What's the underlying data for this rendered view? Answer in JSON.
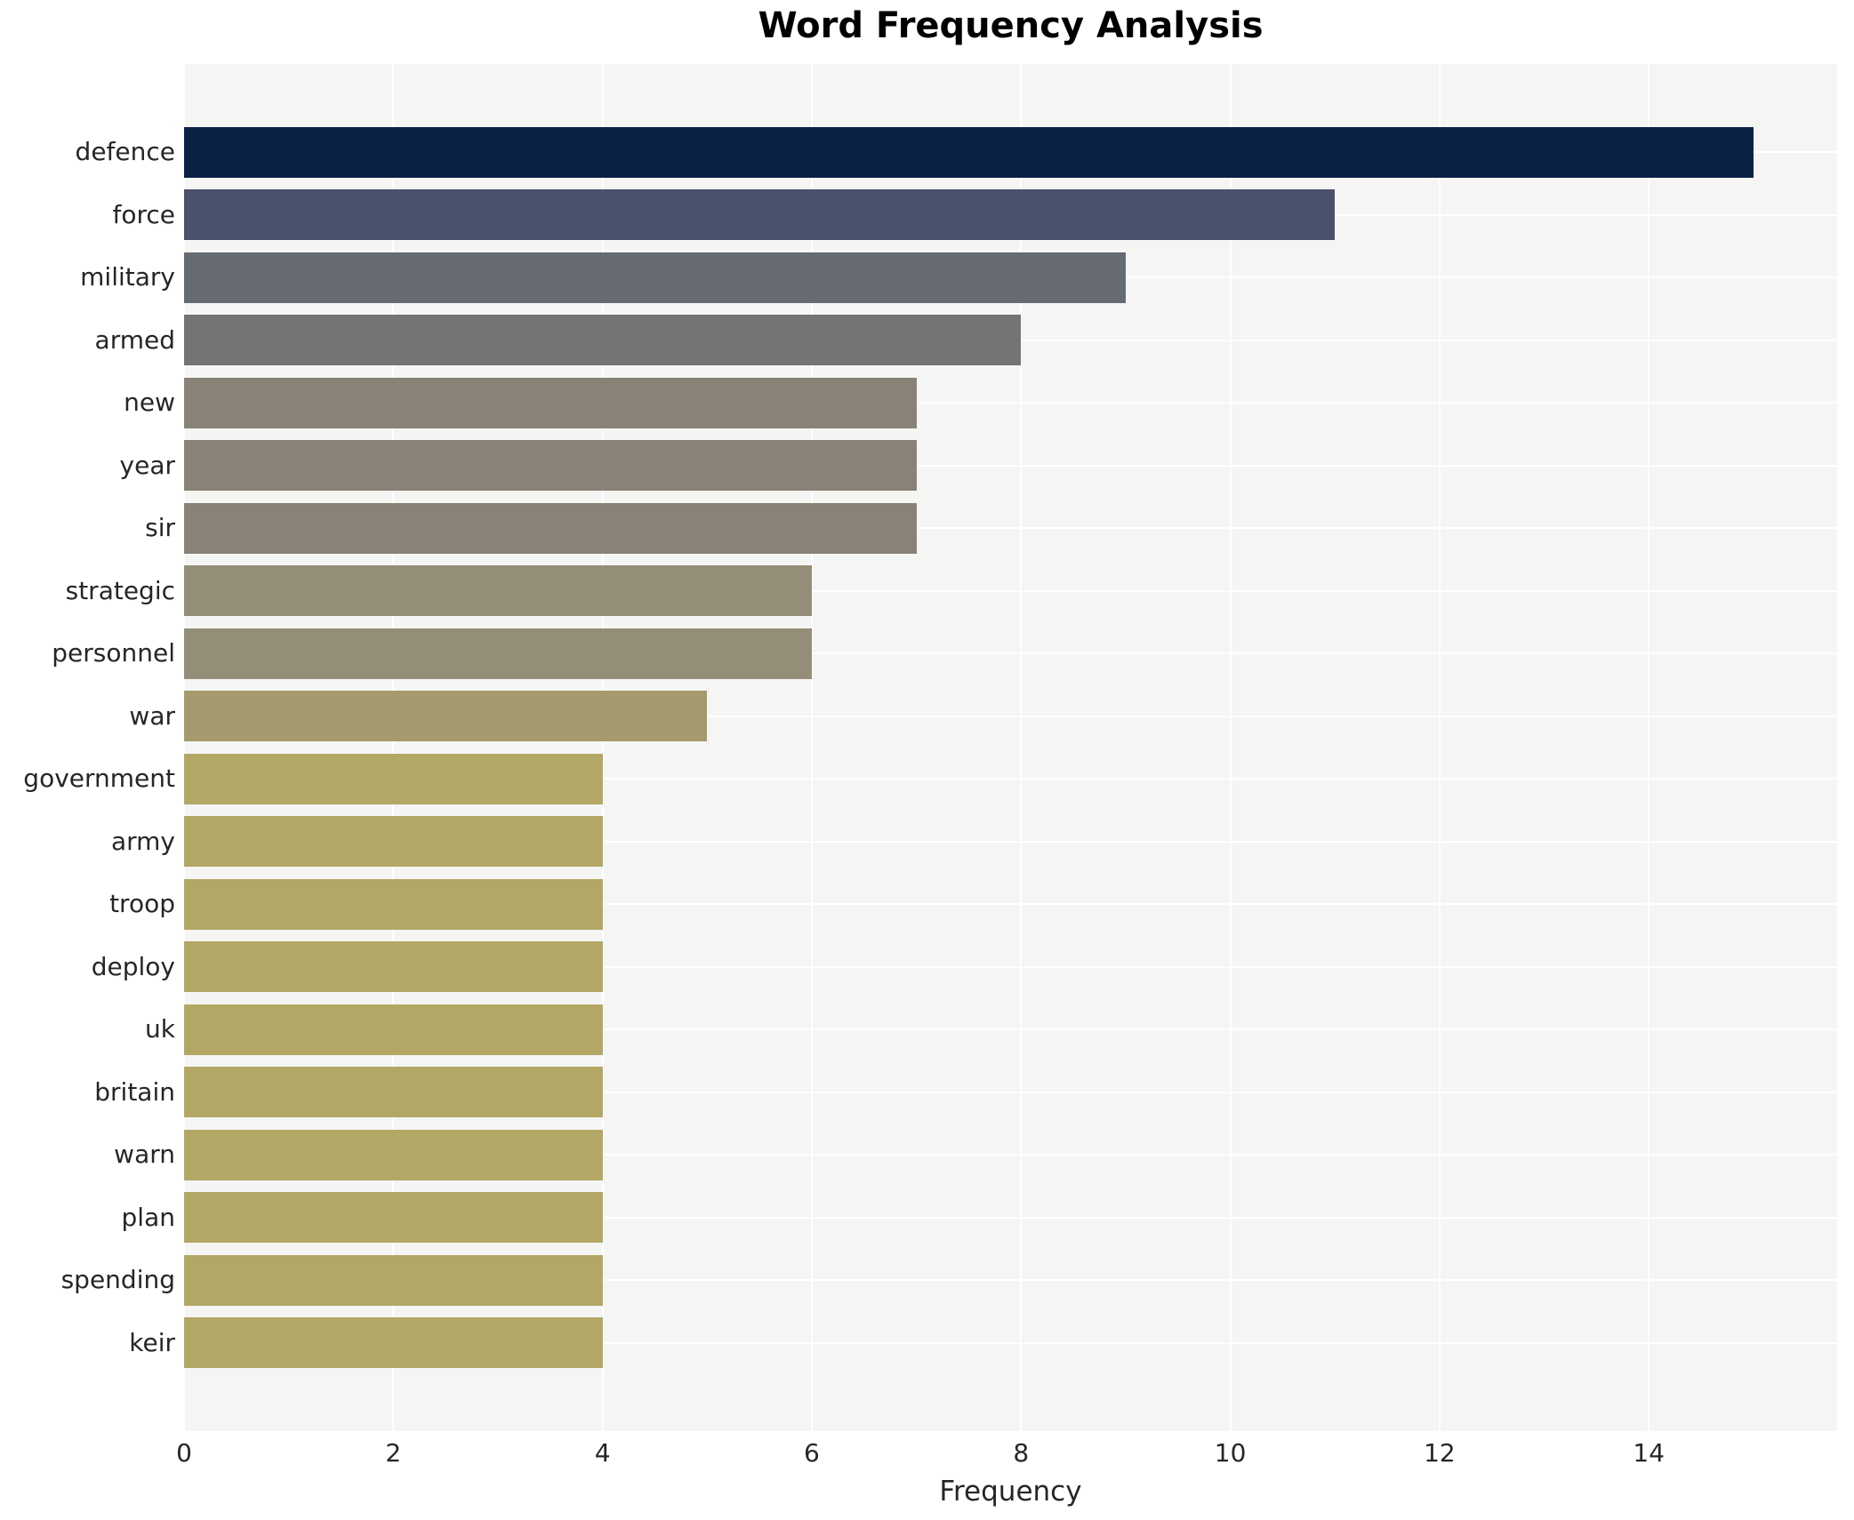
{
  "chart_data": {
    "type": "bar",
    "orientation": "horizontal",
    "title": "Word Frequency Analysis",
    "xlabel": "Frequency",
    "ylabel": "",
    "categories": [
      "defence",
      "force",
      "military",
      "armed",
      "new",
      "year",
      "sir",
      "strategic",
      "personnel",
      "war",
      "government",
      "army",
      "troop",
      "deploy",
      "uk",
      "britain",
      "warn",
      "plan",
      "spending",
      "keir"
    ],
    "values": [
      15,
      11,
      9,
      8,
      7,
      7,
      7,
      6,
      6,
      5,
      4,
      4,
      4,
      4,
      4,
      4,
      4,
      4,
      4,
      4
    ],
    "bar_colors": [
      "#0a2145",
      "#4a526b",
      "#656a73",
      "#737473",
      "#888376",
      "#888376",
      "#888376",
      "#948d77",
      "#948d77",
      "#a49a6d",
      "#b3a766",
      "#b3a766",
      "#b3a766",
      "#b3a766",
      "#b3a766",
      "#b3a766",
      "#b3a766",
      "#b3a766",
      "#b3a766",
      "#b3a766"
    ],
    "x_ticks": [
      0,
      2,
      4,
      6,
      8,
      10,
      12,
      14
    ],
    "xlim": [
      0,
      15.8
    ],
    "grid": true,
    "legend": false,
    "plot_bg_color": "#f5f5f4",
    "grid_color": "#ffffff",
    "figure_bg_color": "#ffffff",
    "text_color": "#262626",
    "title_color": "#000000"
  }
}
